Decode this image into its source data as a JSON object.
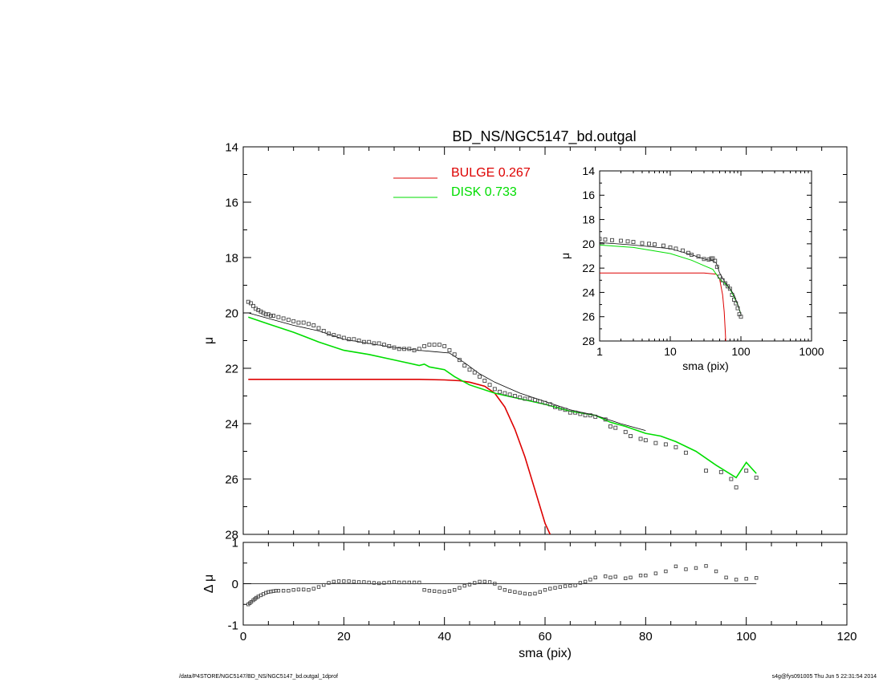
{
  "title": "BD_NS/NGC5147_bd.outgal",
  "footer": {
    "left": "/data/P4STORE/NGC5147/BD_NS/NGC5147_bd.outgal_1dprof",
    "right": "s4g@fys091005  Thu Jun  5 22:31:54 2014"
  },
  "colors": {
    "bulge": "#dd0000",
    "disk": "#00dd00",
    "data": "#555555",
    "model": "#000000"
  },
  "chart_data": [
    {
      "id": "main",
      "type": "line",
      "ylabel": "μ",
      "xlim": [
        0,
        120
      ],
      "ylim": [
        28,
        14
      ],
      "yticks": [
        "14",
        "16",
        "18",
        "20",
        "22",
        "24",
        "26",
        "28"
      ],
      "legend": [
        {
          "name": "BULGE",
          "value": "0.267",
          "color": "#dd0000"
        },
        {
          "name": "DISK",
          "value": "0.733",
          "color": "#00dd00"
        }
      ],
      "legend_placement": "top-center",
      "series": [
        {
          "name": "BULGE",
          "color": "#dd0000",
          "x": [
            1,
            10,
            20,
            30,
            35,
            40,
            43,
            45,
            48,
            50,
            52,
            54,
            56,
            58,
            60,
            61
          ],
          "y": [
            22.4,
            22.4,
            22.4,
            22.4,
            22.4,
            22.42,
            22.45,
            22.5,
            22.65,
            22.9,
            23.4,
            24.2,
            25.2,
            26.4,
            27.6,
            28.0
          ]
        },
        {
          "name": "DISK",
          "color": "#00dd00",
          "x": [
            1,
            5,
            10,
            15,
            20,
            25,
            30,
            35,
            36,
            37,
            40,
            42,
            45,
            50,
            55,
            60,
            65,
            70,
            73,
            76,
            80,
            83,
            86,
            90,
            94,
            98,
            100,
            102
          ],
          "y": [
            20.15,
            20.4,
            20.7,
            21.05,
            21.35,
            21.5,
            21.7,
            21.9,
            21.85,
            21.95,
            22.05,
            22.3,
            22.6,
            22.9,
            23.1,
            23.3,
            23.55,
            23.7,
            23.95,
            24.1,
            24.35,
            24.45,
            24.65,
            25.0,
            25.5,
            25.95,
            25.4,
            25.8
          ]
        },
        {
          "name": "model",
          "color": "#000000",
          "x": [
            1,
            5,
            10,
            15,
            20,
            25,
            30,
            35,
            38,
            41,
            44,
            47,
            50,
            55,
            60,
            65,
            70,
            75,
            80
          ],
          "y": [
            20.0,
            20.2,
            20.45,
            20.65,
            20.95,
            21.1,
            21.25,
            21.35,
            21.4,
            21.45,
            21.8,
            22.2,
            22.5,
            22.9,
            23.2,
            23.5,
            23.7,
            24.0,
            24.25
          ]
        }
      ],
      "points": {
        "name": "data",
        "x": [
          1,
          1.5,
          2,
          2.5,
          3,
          3.5,
          4,
          4.5,
          5,
          5.5,
          6,
          7,
          8,
          9,
          10,
          11,
          12,
          13,
          14,
          15,
          16,
          17,
          18,
          19,
          20,
          21,
          22,
          23,
          24,
          25,
          26,
          27,
          28,
          29,
          30,
          31,
          32,
          33,
          34,
          35,
          36,
          37,
          38,
          39,
          40,
          41,
          42,
          43,
          44,
          45,
          46,
          47,
          48,
          49,
          50,
          51,
          52,
          53,
          54,
          55,
          56,
          57,
          58,
          59,
          60,
          61,
          62,
          63,
          64,
          65,
          66,
          67,
          68,
          69,
          70,
          72,
          73,
          74,
          76,
          77,
          79,
          80,
          82,
          84,
          86,
          88,
          92,
          95,
          97,
          98,
          100,
          102
        ],
        "y": [
          19.6,
          19.65,
          19.75,
          19.85,
          19.9,
          19.95,
          20.0,
          20.05,
          20.05,
          20.1,
          20.1,
          20.15,
          20.2,
          20.25,
          20.3,
          20.35,
          20.35,
          20.4,
          20.45,
          20.55,
          20.65,
          20.75,
          20.8,
          20.85,
          20.9,
          20.95,
          20.95,
          21.0,
          21.05,
          21.05,
          21.1,
          21.1,
          21.15,
          21.2,
          21.25,
          21.3,
          21.3,
          21.3,
          21.35,
          21.3,
          21.2,
          21.15,
          21.15,
          21.15,
          21.2,
          21.35,
          21.5,
          21.7,
          21.9,
          22.05,
          22.15,
          22.3,
          22.45,
          22.6,
          22.75,
          22.85,
          22.9,
          22.95,
          23.0,
          23.05,
          23.1,
          23.1,
          23.15,
          23.2,
          23.25,
          23.3,
          23.4,
          23.45,
          23.5,
          23.6,
          23.6,
          23.65,
          23.7,
          23.7,
          23.75,
          23.85,
          24.1,
          24.15,
          24.3,
          24.45,
          24.55,
          24.6,
          24.7,
          24.75,
          24.85,
          25.05,
          25.7,
          25.75,
          26.0,
          26.3,
          25.7,
          25.95
        ]
      }
    },
    {
      "id": "residual",
      "type": "scatter",
      "xlabel": "sma (pix)",
      "ylabel": "Δ μ",
      "xlim": [
        0,
        120
      ],
      "ylim": [
        -1,
        1
      ],
      "xticks": [
        "0",
        "20",
        "40",
        "60",
        "80",
        "100",
        "120"
      ],
      "yticks": [
        "-1",
        "0",
        "1"
      ],
      "zero_line": [
        1,
        102
      ],
      "points": {
        "name": "residual",
        "x": [
          1,
          1.3,
          1.6,
          2,
          2.3,
          2.6,
          3,
          3.5,
          4,
          4.5,
          5,
          5.5,
          6,
          6.5,
          7,
          8,
          9,
          10,
          11,
          12,
          13,
          14,
          15,
          16,
          17,
          18,
          19,
          20,
          21,
          22,
          23,
          24,
          25,
          26,
          27,
          28,
          29,
          30,
          31,
          32,
          33,
          34,
          35,
          36,
          37,
          38,
          39,
          40,
          41,
          42,
          43,
          44,
          45,
          46,
          47,
          48,
          49,
          50,
          51,
          52,
          53,
          54,
          55,
          56,
          57,
          58,
          59,
          60,
          61,
          62,
          63,
          64,
          65,
          66,
          67,
          68,
          69,
          70,
          72,
          73,
          74,
          76,
          77,
          79,
          80,
          82,
          84,
          86,
          88,
          90,
          92,
          94,
          96,
          98,
          100,
          102
        ],
        "y": [
          -0.5,
          -0.47,
          -0.44,
          -0.4,
          -0.37,
          -0.34,
          -0.31,
          -0.28,
          -0.25,
          -0.22,
          -0.2,
          -0.19,
          -0.18,
          -0.17,
          -0.17,
          -0.17,
          -0.17,
          -0.15,
          -0.14,
          -0.14,
          -0.15,
          -0.12,
          -0.08,
          -0.03,
          0.02,
          0.05,
          0.06,
          0.06,
          0.06,
          0.05,
          0.04,
          0.04,
          0.03,
          0.02,
          0.01,
          0.02,
          0.03,
          0.04,
          0.03,
          0.03,
          0.03,
          0.03,
          0.03,
          -0.15,
          -0.17,
          -0.18,
          -0.19,
          -0.2,
          -0.18,
          -0.15,
          -0.1,
          -0.05,
          -0.02,
          0.02,
          0.05,
          0.05,
          0.04,
          0.0,
          -0.1,
          -0.15,
          -0.18,
          -0.2,
          -0.22,
          -0.24,
          -0.25,
          -0.24,
          -0.2,
          -0.15,
          -0.12,
          -0.1,
          -0.08,
          -0.06,
          -0.05,
          -0.04,
          0.02,
          0.05,
          0.1,
          0.15,
          0.18,
          0.15,
          0.17,
          0.13,
          0.15,
          0.2,
          0.2,
          0.25,
          0.3,
          0.42,
          0.35,
          0.38,
          0.43,
          0.3,
          0.15,
          0.1,
          0.12,
          0.14
        ]
      }
    },
    {
      "id": "inset",
      "type": "line",
      "xlabel": "sma (pix)",
      "ylabel": "μ",
      "xscale": "log",
      "xlim": [
        1,
        1000
      ],
      "ylim": [
        28,
        14
      ],
      "xticks": [
        "1",
        "10",
        "100",
        "1000"
      ],
      "yticks": [
        "14",
        "16",
        "18",
        "20",
        "22",
        "24",
        "26",
        "28"
      ],
      "series": [
        {
          "name": "BULGE",
          "color": "#dd0000",
          "x": [
            1,
            10,
            30,
            45,
            50,
            55,
            58,
            60,
            61
          ],
          "y": [
            22.4,
            22.4,
            22.4,
            22.5,
            22.9,
            24.2,
            25.6,
            27.2,
            28.0
          ]
        },
        {
          "name": "DISK",
          "color": "#00dd00",
          "x": [
            1,
            3,
            10,
            20,
            30,
            40,
            50,
            60,
            70,
            80,
            90,
            100
          ],
          "y": [
            20.1,
            20.3,
            20.8,
            21.35,
            21.8,
            22.1,
            22.9,
            23.3,
            23.7,
            24.4,
            25.0,
            25.8
          ]
        },
        {
          "name": "model",
          "color": "#000000",
          "x": [
            1,
            3,
            10,
            20,
            30,
            40,
            45,
            50,
            60,
            70,
            80,
            90,
            100
          ],
          "y": [
            19.9,
            20.1,
            20.4,
            20.9,
            21.25,
            21.4,
            21.6,
            22.4,
            23.2,
            23.7,
            24.2,
            25.0,
            25.8
          ]
        }
      ],
      "points": {
        "name": "data",
        "x": [
          1,
          1.2,
          1.5,
          2,
          2.5,
          3,
          4,
          5,
          6,
          8,
          10,
          12,
          15,
          18,
          20,
          25,
          30,
          35,
          38,
          40,
          43,
          46,
          50,
          55,
          60,
          65,
          70,
          75,
          80,
          85,
          90,
          95,
          100
        ],
        "y": [
          19.6,
          19.65,
          19.7,
          19.75,
          19.8,
          19.85,
          19.95,
          20.0,
          20.05,
          20.15,
          20.3,
          20.4,
          20.55,
          20.75,
          20.9,
          21.05,
          21.25,
          21.3,
          21.2,
          21.2,
          21.4,
          21.9,
          22.7,
          23.0,
          23.25,
          23.5,
          23.7,
          24.2,
          24.6,
          24.9,
          25.3,
          25.8,
          26.0
        ]
      }
    }
  ]
}
